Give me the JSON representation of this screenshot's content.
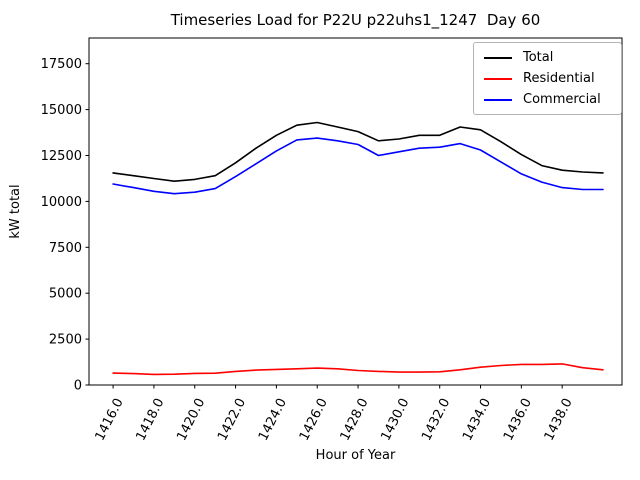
{
  "chart_data": {
    "type": "line",
    "title": "Timeseries Load for P22U p22uhs1_1247  Day 60",
    "xlabel": "Hour of Year",
    "ylabel": "kW total",
    "grid": false,
    "legend_position": "upper right",
    "xlim": [
      1414.82,
      1440.93
    ],
    "ylim": [
      0,
      18900
    ],
    "xticks": [
      1416,
      1418,
      1420,
      1422,
      1424,
      1426,
      1428,
      1430,
      1432,
      1434,
      1436,
      1438
    ],
    "xtick_labels": [
      "1416.0",
      "1418.0",
      "1420.0",
      "1422.0",
      "1424.0",
      "1426.0",
      "1428.0",
      "1430.0",
      "1432.0",
      "1434.0",
      "1436.0",
      "1438.0"
    ],
    "yticks": [
      0,
      2500,
      5000,
      7500,
      10000,
      12500,
      15000,
      17500
    ],
    "ytick_labels": [
      "0",
      "2500",
      "5000",
      "7500",
      "10000",
      "12500",
      "15000",
      "17500"
    ],
    "x": [
      1416,
      1417,
      1418,
      1419,
      1420,
      1421,
      1422,
      1423,
      1424,
      1425,
      1426,
      1427,
      1428,
      1429,
      1430,
      1431,
      1432,
      1433,
      1434,
      1435,
      1436,
      1437,
      1438,
      1439,
      1440
    ],
    "series": [
      {
        "name": "Total",
        "color": "#000000",
        "values": [
          11550,
          11400,
          11250,
          11100,
          11200,
          11400,
          12100,
          12900,
          13600,
          14150,
          14300,
          14050,
          13800,
          13300,
          13400,
          13600,
          13600,
          14050,
          13900,
          13250,
          12550,
          11950,
          11700,
          11600,
          11550
        ]
      },
      {
        "name": "Residential",
        "color": "#ff0000",
        "values": [
          650,
          620,
          580,
          590,
          630,
          640,
          740,
          810,
          850,
          880,
          920,
          880,
          790,
          740,
          700,
          700,
          720,
          830,
          970,
          1060,
          1120,
          1120,
          1150,
          940,
          830
        ]
      },
      {
        "name": "Commercial",
        "color": "#0000ff",
        "values": [
          10950,
          10750,
          10550,
          10420,
          10500,
          10700,
          11350,
          12050,
          12750,
          13350,
          13450,
          13300,
          13100,
          12500,
          12700,
          12900,
          12950,
          13150,
          12800,
          12150,
          11500,
          11050,
          10750,
          10650,
          10650
        ]
      }
    ]
  }
}
